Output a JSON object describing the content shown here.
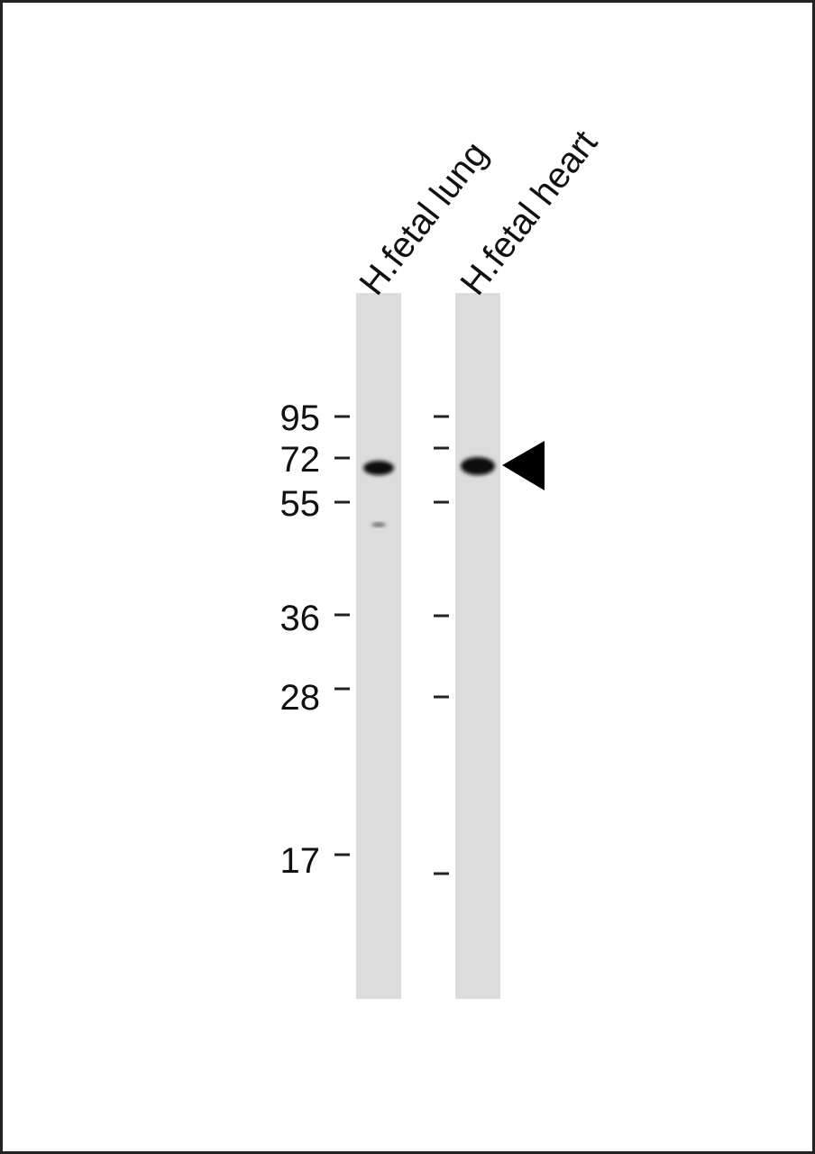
{
  "lanes": [
    {
      "label": "H.fetal lung"
    },
    {
      "label": "H.fetal heart"
    }
  ],
  "markers": [
    "95",
    "72",
    "55",
    "36",
    "28",
    "17"
  ]
}
